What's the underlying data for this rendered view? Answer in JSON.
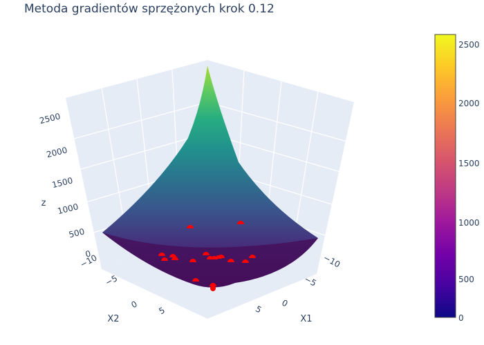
{
  "title": "Metoda gradientów sprzężonych krok 0.12",
  "chart_data": {
    "type": "surface3d",
    "title": "Metoda gradientów sprzężonych krok 0.12",
    "x_label": "X1",
    "y_label": "X2",
    "z_label": "z",
    "x_ticks": [
      "−10",
      "−5",
      "0",
      "5"
    ],
    "y_ticks": [
      "−10",
      "−5",
      "0",
      "5"
    ],
    "z_ticks": [
      "0",
      "500",
      "1000",
      "1500",
      "2000",
      "2500"
    ],
    "x_range": [
      -10,
      10
    ],
    "y_range": [
      -10,
      10
    ],
    "z_range": [
      0,
      2600
    ],
    "colorscale_surface": "viridis",
    "colorscale_bar": "plasma",
    "colorbar": {
      "ticks": [
        "0",
        "500",
        "1000",
        "1500",
        "2000",
        "2500"
      ],
      "range": [
        0,
        2600
      ]
    },
    "point_color": "#ff0000"
  }
}
